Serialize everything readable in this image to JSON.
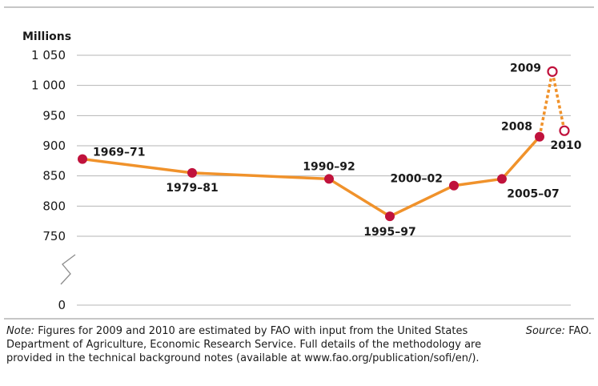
{
  "chart_data": {
    "type": "line",
    "unit_label": "Millions",
    "y_ticks": [
      "1 050",
      "1 000",
      "950",
      "900",
      "850",
      "800",
      "750",
      "0"
    ],
    "ylim": [
      750,
      1050
    ],
    "y_break": true,
    "series": [
      {
        "points": [
          {
            "x": "1969–71",
            "y": 878
          },
          {
            "x": "1979–81",
            "y": 855
          },
          {
            "x": "1990–92",
            "y": 845
          },
          {
            "x": "1995–97",
            "y": 783
          },
          {
            "x": "2000–02",
            "y": 834
          },
          {
            "x": "2005–07",
            "y": 845
          },
          {
            "x": "2008",
            "y": 915
          }
        ]
      },
      {
        "estimated": true,
        "points": [
          {
            "x": "2008",
            "y": 915
          },
          {
            "x": "2009",
            "y": 1023
          },
          {
            "x": "2010",
            "y": 925
          }
        ]
      }
    ],
    "colors": {
      "line": "#f0922b",
      "marker": "#c0123c",
      "axis": "#8c8c8c",
      "grid": "#b5b5b5"
    }
  },
  "footer": {
    "note_label": "Note:",
    "note_text": " Figures for 2009 and 2010 are estimated by FAO with input from the United States Department of Agriculture, Economic Research Service. Full details of the methodology are provided in the technical background notes (available at www.fao.org/publication/sofi/en/).",
    "source_label": "Source:",
    "source_text": " FAO."
  }
}
